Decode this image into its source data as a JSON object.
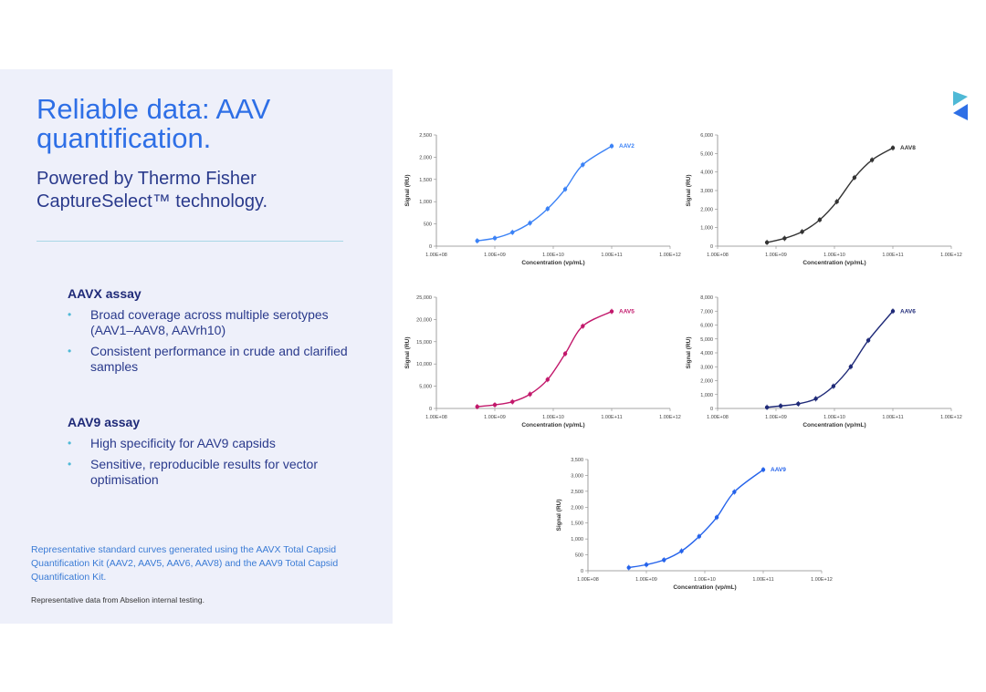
{
  "panel": {
    "title": "Reliable data: AAV quantification.",
    "subtitle": "Powered by Thermo Fisher CaptureSelect™ technology.",
    "aavx": {
      "heading": "AAVX assay",
      "bullets": [
        "Broad coverage across multiple serotypes (AAV1–AAV8, AAVrh10)",
        "Consistent performance in crude and clarified samples"
      ]
    },
    "aav9": {
      "heading": "AAV9 assay",
      "bullets": [
        "High specificity for AAV9 capsids",
        "Sensitive, reproducible results for vector optimisation"
      ]
    },
    "footnote": "Representative standard curves generated using the AAVX Total Capsid Quantification Kit (AAV2, AAV5, AAV6, AAV8) and the AAV9 Total Capsid Quantification Kit.",
    "source": "Representative data from Abselion internal testing."
  },
  "colors": {
    "accent": "#2e6fe6",
    "navy": "#1f2a78",
    "bullet": "#4fb9d6",
    "panel_bg": "#eef0fa"
  },
  "logo_icon": "abselion-logo-icon",
  "chart_data": [
    {
      "id": "aav2",
      "type": "line",
      "color": "#3b82f6",
      "label": "AAV2",
      "xlabel": "Concentration (vp/mL)",
      "ylabel": "Signal (RU)",
      "xscale": "log",
      "xlim": [
        100000000.0,
        1000000000000.0
      ],
      "xticks": [
        "1.00E+08",
        "1.00E+09",
        "1.00E+10",
        "1.00E+11",
        "1.00E+12"
      ],
      "ylim": [
        0,
        2500
      ],
      "yticks": [
        "0",
        "500",
        "1,000",
        "1,500",
        "2,000",
        "2,500"
      ],
      "x": [
        500000000.0,
        1000000000.0,
        2000000000.0,
        4000000000.0,
        8000000000.0,
        16000000000.0,
        32000000000.0,
        100000000000.0
      ],
      "values": [
        120,
        180,
        310,
        520,
        840,
        1280,
        1830,
        2250
      ]
    },
    {
      "id": "aav8",
      "type": "line",
      "color": "#333333",
      "label": "AAV8",
      "xlabel": "Concentration (vp/mL)",
      "ylabel": "Signal (RU)",
      "xscale": "log",
      "xlim": [
        100000000.0,
        1000000000000.0
      ],
      "xticks": [
        "1.00E+08",
        "1.00E+09",
        "1.00E+10",
        "1.00E+11",
        "1.00E+12"
      ],
      "ylim": [
        0,
        6000
      ],
      "yticks": [
        "0",
        "1,000",
        "2,000",
        "3,000",
        "4,000",
        "5,000",
        "6,000"
      ],
      "x": [
        700000000.0,
        1400000000.0,
        2800000000.0,
        5600000000.0,
        11000000000.0,
        22000000000.0,
        44000000000.0,
        100000000000.0
      ],
      "values": [
        200,
        420,
        780,
        1420,
        2400,
        3700,
        4650,
        5300
      ]
    },
    {
      "id": "aav5",
      "type": "line",
      "color": "#c2186b",
      "label": "AAV5",
      "xlabel": "Concentration (vp/mL)",
      "ylabel": "Signal (RU)",
      "xscale": "log",
      "xlim": [
        100000000.0,
        1000000000000.0
      ],
      "xticks": [
        "1.00E+08",
        "1.00E+09",
        "1.00E+10",
        "1.00E+11",
        "1.00E+12"
      ],
      "ylim": [
        0,
        25000
      ],
      "yticks": [
        "0",
        "5,000",
        "10,000",
        "15,000",
        "20,000",
        "25,000"
      ],
      "x": [
        500000000.0,
        1000000000.0,
        2000000000.0,
        4000000000.0,
        8000000000.0,
        16000000000.0,
        32000000000.0,
        100000000000.0
      ],
      "values": [
        400,
        800,
        1500,
        3200,
        6500,
        12300,
        18500,
        21800
      ]
    },
    {
      "id": "aav6",
      "type": "line",
      "color": "#1f2a78",
      "label": "AAV6",
      "xlabel": "Concentration (vp/mL)",
      "ylabel": "Signal (RU)",
      "xscale": "log",
      "xlim": [
        100000000.0,
        1000000000000.0
      ],
      "xticks": [
        "1.00E+08",
        "1.00E+09",
        "1.00E+10",
        "1.00E+11",
        "1.00E+12"
      ],
      "ylim": [
        0,
        8000
      ],
      "yticks": [
        "0",
        "1,000",
        "2,000",
        "3,000",
        "4,000",
        "5,000",
        "6,000",
        "7,000",
        "8,000"
      ],
      "x": [
        700000000.0,
        1200000000.0,
        2400000000.0,
        4800000000.0,
        9600000000.0,
        19000000000.0,
        38000000000.0,
        100000000000.0
      ],
      "values": [
        80,
        180,
        330,
        700,
        1600,
        3000,
        4900,
        7000
      ]
    },
    {
      "id": "aav9",
      "type": "line",
      "color": "#2563eb",
      "label": "AAV9",
      "xlabel": "Concentration (vp/mL)",
      "ylabel": "Signal (RU)",
      "xscale": "log",
      "xlim": [
        100000000.0,
        1000000000000.0
      ],
      "xticks": [
        "1.00E+08",
        "1.00E+09",
        "1.00E+10",
        "1.00E+11",
        "1.00E+12"
      ],
      "ylim": [
        0,
        3500
      ],
      "yticks": [
        "0",
        "500",
        "1,000",
        "1,500",
        "2,000",
        "2,500",
        "3,000",
        "3,500"
      ],
      "x": [
        500000000.0,
        1000000000.0,
        2000000000.0,
        4000000000.0,
        8000000000.0,
        16000000000.0,
        32000000000.0,
        100000000000.0
      ],
      "values": [
        100,
        190,
        340,
        620,
        1080,
        1680,
        2480,
        3180
      ]
    }
  ]
}
